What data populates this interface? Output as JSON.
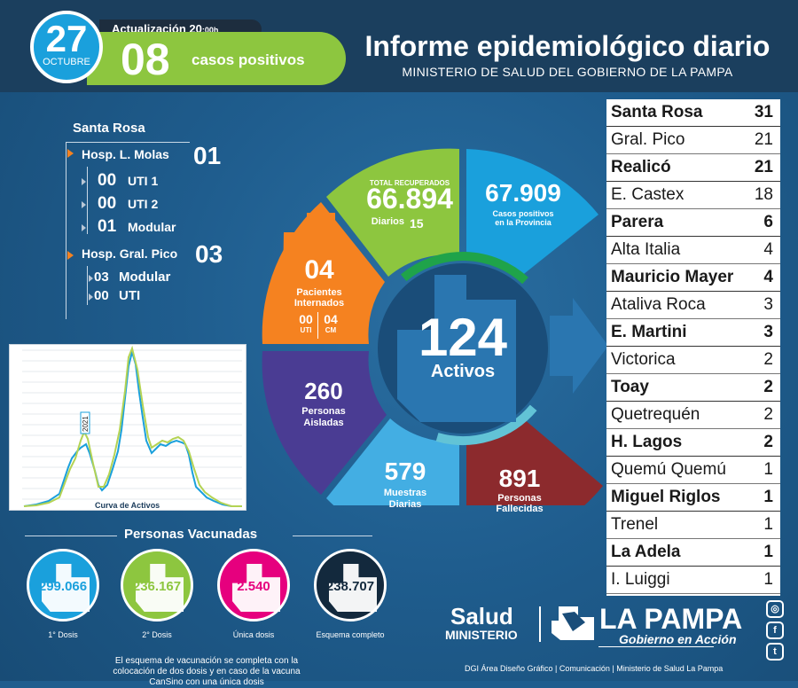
{
  "header": {
    "day": "27",
    "month": "OCTUBRE",
    "update_label": "Actualización 20",
    "update_time": ":00h",
    "cases_number": "08",
    "cases_label": "casos positivos",
    "title": "Informe epidemiológico diario",
    "subtitle": "MINISTERIO DE SALUD DEL GOBIERNO DE LA PAMPA"
  },
  "hospitals": {
    "city": "Santa Rosa",
    "molas": {
      "label": "Hosp. L. Molas",
      "value": "01",
      "items": [
        {
          "value": "00",
          "label": "UTI 1"
        },
        {
          "value": "00",
          "label": "UTI 2"
        },
        {
          "value": "01",
          "label": "Modular"
        }
      ]
    },
    "pico": {
      "label": "Hosp. Gral. Pico",
      "value": "03",
      "items": [
        {
          "value": "03",
          "label": "Modular"
        },
        {
          "value": "00",
          "label": "UTI"
        }
      ]
    }
  },
  "chart": {
    "label": "Curva de Activos",
    "callout": "2021"
  },
  "wheel": {
    "recovered_label": "TOTAL RECUPERADOS",
    "recovered_value": "66.894",
    "daily_label": "Diarios",
    "daily_value": "15",
    "positives_value": "67.909",
    "positives_label_1": "Casos positivos",
    "positives_label_2": "en la Provincia",
    "interned_value": "04",
    "interned_label_1": "Pacientes",
    "interned_label_2": "Internados",
    "uti_value": "00",
    "uti_label": "UTI",
    "cm_value": "04",
    "cm_label": "CM",
    "active_value": "124",
    "active_label": "Activos",
    "isolated_value": "260",
    "isolated_label_1": "Personas",
    "isolated_label_2": "Aisladas",
    "samples_value": "579",
    "samples_label_1": "Muestras",
    "samples_label_2": "Diarias",
    "deaths_value": "891",
    "deaths_label_1": "Personas",
    "deaths_label_2": "Fallecidas"
  },
  "localities": [
    {
      "name": "Santa Rosa",
      "value": "31",
      "bold": true
    },
    {
      "name": "Gral. Pico",
      "value": "21",
      "bold": false
    },
    {
      "name": "Realicó",
      "value": "21",
      "bold": true
    },
    {
      "name": "E. Castex",
      "value": "18",
      "bold": false
    },
    {
      "name": "Parera",
      "value": "6",
      "bold": true
    },
    {
      "name": "Alta Italia",
      "value": "4",
      "bold": false
    },
    {
      "name": "Mauricio Mayer",
      "value": "4",
      "bold": true
    },
    {
      "name": "Ataliva Roca",
      "value": "3",
      "bold": false
    },
    {
      "name": "E. Martini",
      "value": "3",
      "bold": true
    },
    {
      "name": "Victorica",
      "value": "2",
      "bold": false
    },
    {
      "name": "Toay",
      "value": "2",
      "bold": true
    },
    {
      "name": "Quetrequén",
      "value": "2",
      "bold": false
    },
    {
      "name": "H. Lagos",
      "value": "2",
      "bold": true
    },
    {
      "name": "Quemú Quemú",
      "value": "1",
      "bold": false
    },
    {
      "name": "Miguel Riglos",
      "value": "1",
      "bold": true
    },
    {
      "name": "Trenel",
      "value": "1",
      "bold": false
    },
    {
      "name": "La Adela",
      "value": "1",
      "bold": true
    },
    {
      "name": "I. Luiggi",
      "value": "1",
      "bold": false
    }
  ],
  "vaccination": {
    "title": "Personas Vacunadas",
    "items": [
      {
        "value": "299.066",
        "label": "1° Dosis",
        "color": "#1aa0dc"
      },
      {
        "value": "236.167",
        "label": "2° Dosis",
        "color": "#8dc63f"
      },
      {
        "value": "2.540",
        "label": "Única dosis",
        "color": "#e6007e"
      },
      {
        "value": "238.707",
        "label": "Esquema completo",
        "color": "#13293d"
      }
    ],
    "note": "El esquema de vacunación se completa con la colocación de dos dosis y en caso de la vacuna CanSino con una única dosis"
  },
  "footer": {
    "salud": "Salud",
    "ministerio": "MINISTERIO",
    "la_pampa": "LA PAMPA",
    "gobierno": "Gobierno en Acción",
    "credits": "DGI Área Diseño Gráfico  |  Comunicación  |  Ministerio de Salud La Pampa",
    "icons": [
      "instagram-icon",
      "facebook-icon",
      "twitter-icon"
    ]
  }
}
